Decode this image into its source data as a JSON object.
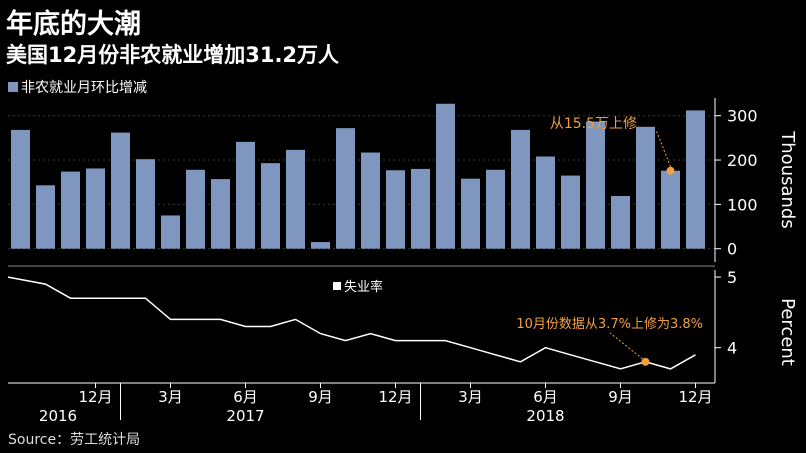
{
  "title": "年底的大潮",
  "subtitle": "美国12月份非农就业增加31.2万人",
  "source": "Source：劳工统计局",
  "colors": {
    "background": "#000000",
    "bar": "#7f97bf",
    "line": "#ffffff",
    "annotation": "#f0a040",
    "grid": "#3a3a3a"
  },
  "chart_data": [
    {
      "type": "bar",
      "legend": "非农就业月环比增减",
      "ylabel": "Thousands",
      "ylim": [
        -30,
        340
      ],
      "yticks": [
        0,
        100,
        200,
        300
      ],
      "values": [
        268,
        143,
        174,
        181,
        262,
        202,
        75,
        178,
        157,
        241,
        193,
        223,
        15,
        272,
        217,
        177,
        180,
        327,
        158,
        178,
        268,
        208,
        165,
        287,
        119,
        275,
        176,
        312
      ],
      "annotation": {
        "text": "从15.5万上修",
        "index": 26,
        "value": 176
      }
    },
    {
      "type": "line",
      "legend": "失业率",
      "ylabel": "Percent",
      "ylim": [
        3.5,
        5.1
      ],
      "yticks": [
        4,
        5
      ],
      "values": [
        5.0,
        4.9,
        4.7,
        4.7,
        4.7,
        4.7,
        4.4,
        4.4,
        4.4,
        4.3,
        4.3,
        4.4,
        4.2,
        4.1,
        4.2,
        4.1,
        4.1,
        4.1,
        4.0,
        3.9,
        3.8,
        4.0,
        3.9,
        3.8,
        3.7,
        3.8,
        3.7,
        3.9
      ],
      "annotation": {
        "text": "10月份数据从3.7%上修为3.8%",
        "index": 25,
        "value": 3.8
      }
    }
  ],
  "x_axis": {
    "month_ticks": [
      {
        "label": "12月",
        "index": 3
      },
      {
        "label": "3月",
        "index": 6
      },
      {
        "label": "6月",
        "index": 9
      },
      {
        "label": "9月",
        "index": 12
      },
      {
        "label": "12月",
        "index": 15
      },
      {
        "label": "3月",
        "index": 18
      },
      {
        "label": "6月",
        "index": 21
      },
      {
        "label": "9月",
        "index": 24
      },
      {
        "label": "12月",
        "index": 27
      }
    ],
    "year_labels": [
      {
        "label": "2016",
        "index": 1.5
      },
      {
        "label": "2017",
        "index": 9
      },
      {
        "label": "2018",
        "index": 21
      }
    ]
  }
}
